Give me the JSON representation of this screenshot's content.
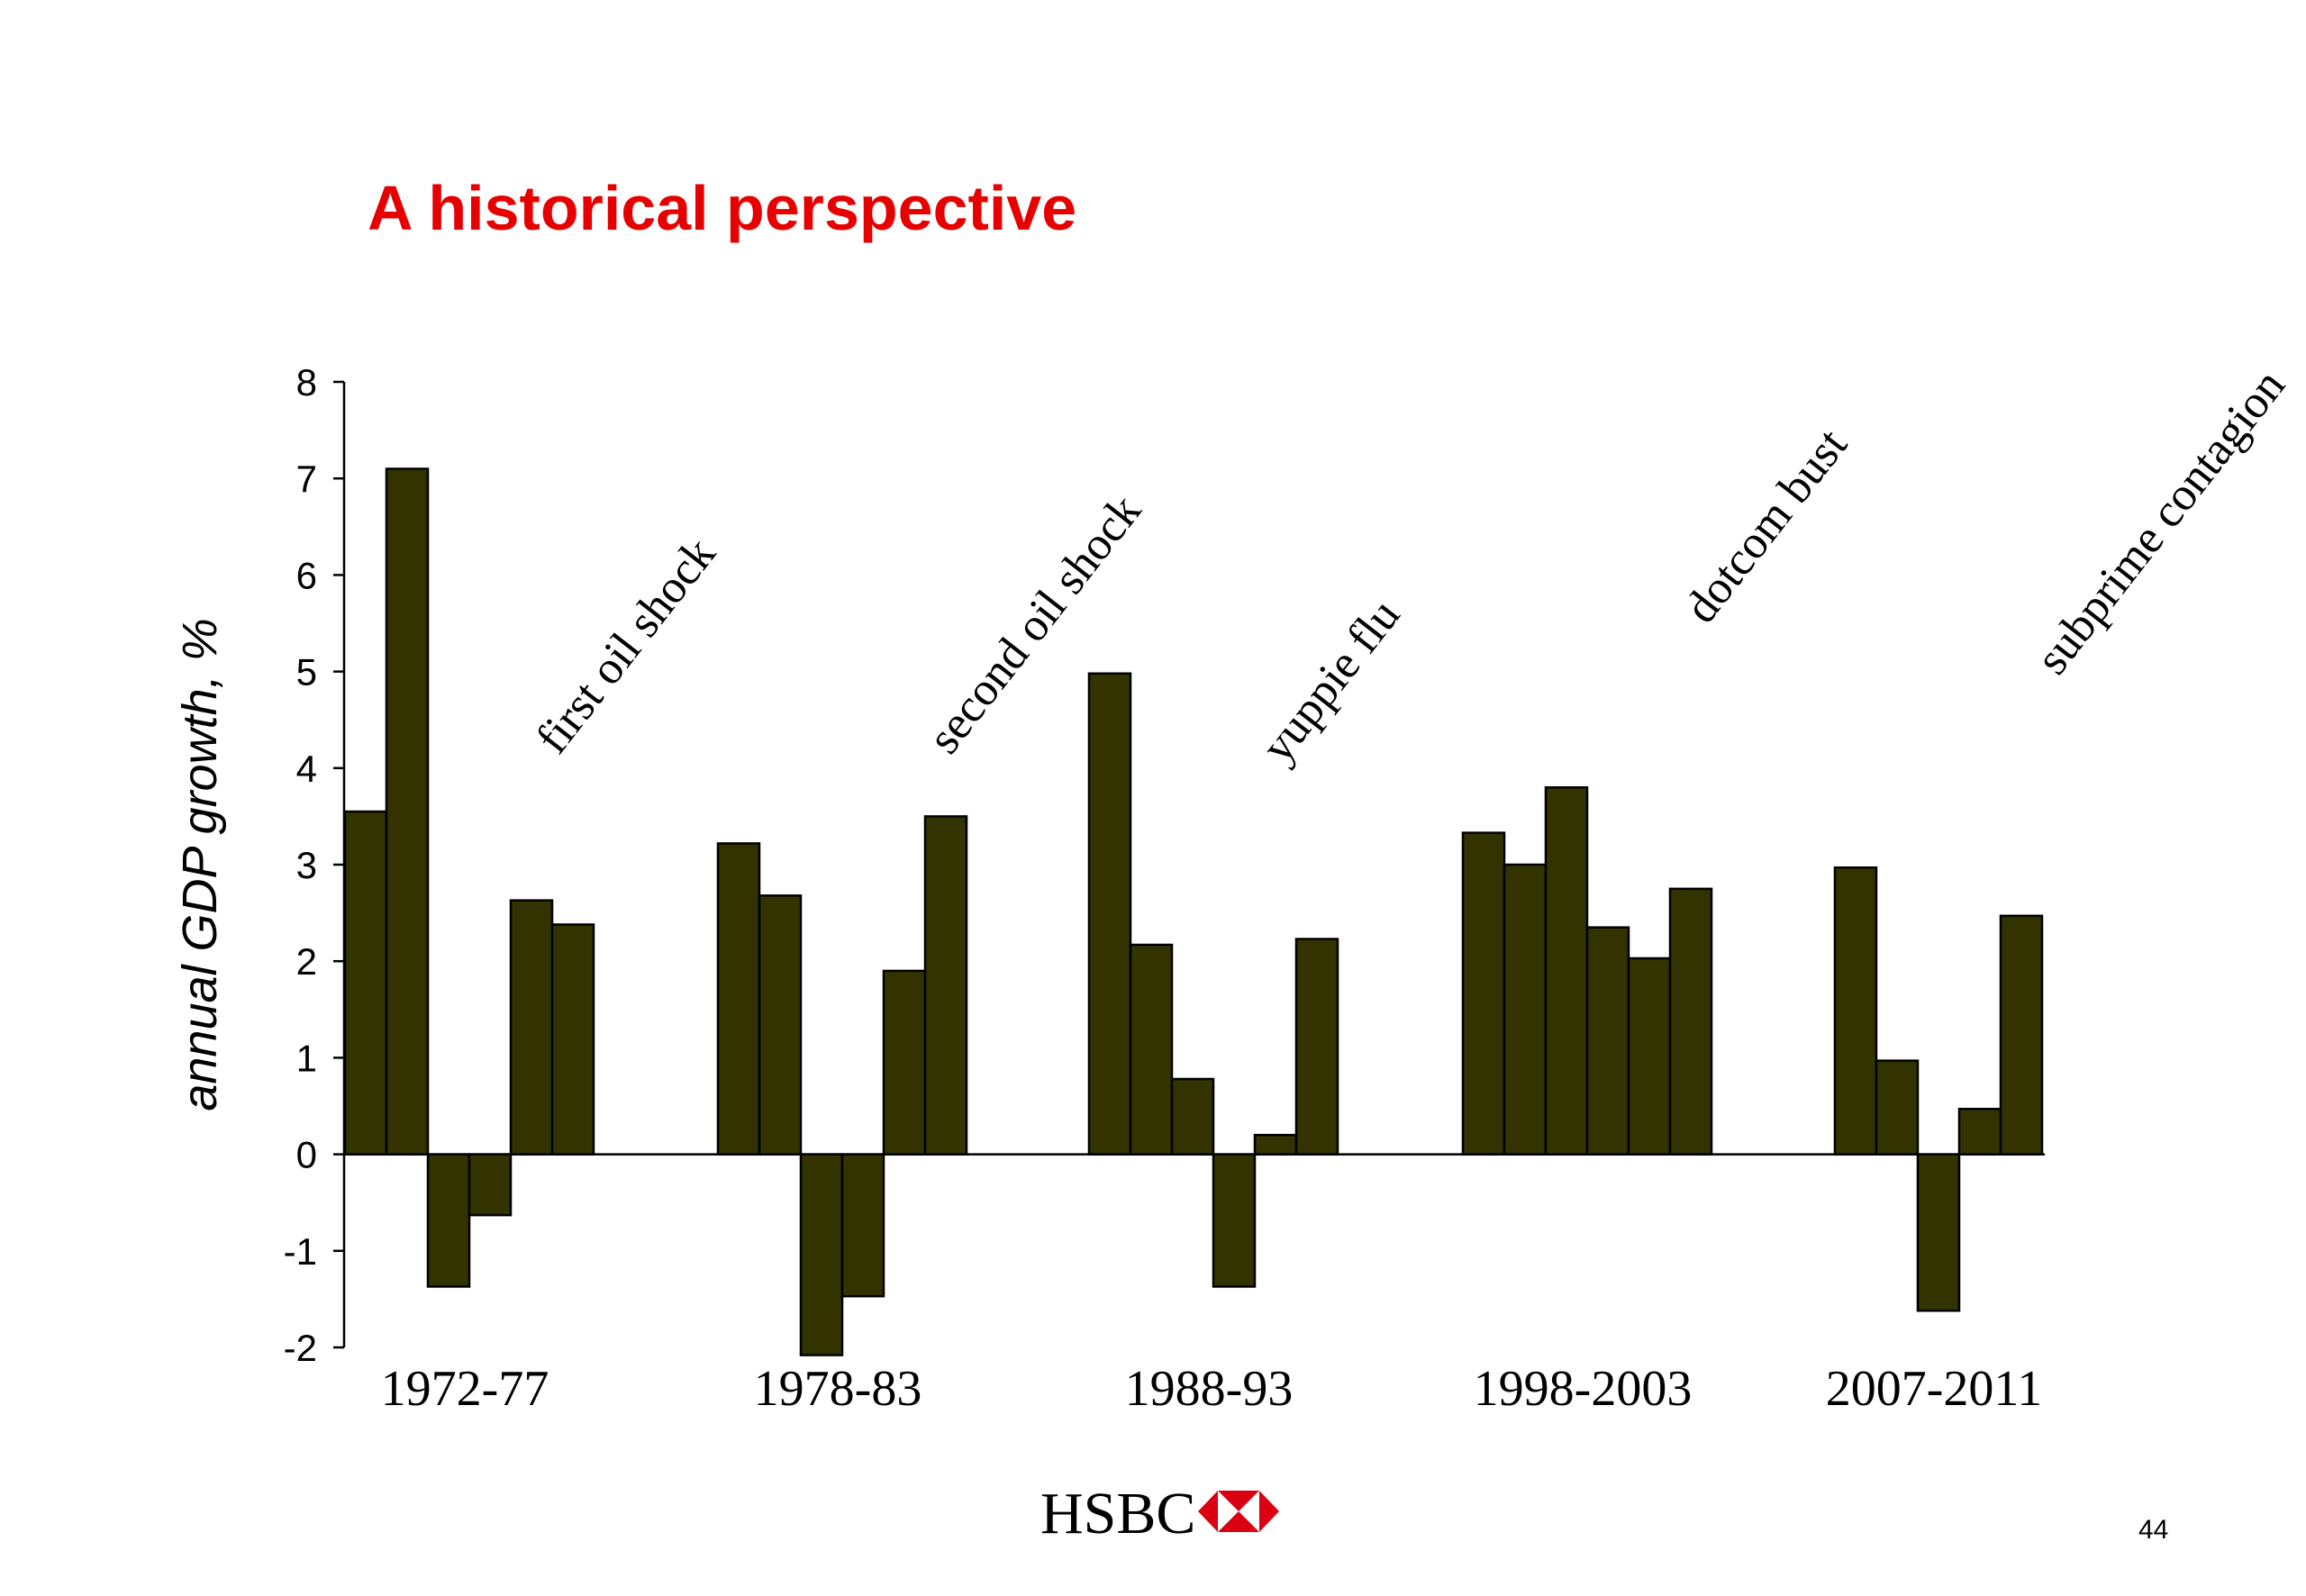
{
  "slide": {
    "title": "A historical perspective",
    "logo_text": "HSBC",
    "logo_icon": "hsbc-hexagon-icon",
    "page_number": "44"
  },
  "colors": {
    "title": "#e60000",
    "bar_fill": "#333300",
    "logo_red": "#db0011"
  },
  "chart_data": {
    "type": "bar",
    "title": "",
    "xlabel": "",
    "ylabel": "annual GDP growth, %",
    "ylim": [
      -2,
      8
    ],
    "yticks": [
      -2,
      -1,
      0,
      1,
      2,
      3,
      4,
      5,
      6,
      7,
      8
    ],
    "grid": false,
    "legend": "none",
    "groups": [
      {
        "label": "1972-77",
        "annotation": "first oil shock",
        "values": [
          3.55,
          7.1,
          -1.37,
          -0.63,
          2.63,
          2.38
        ]
      },
      {
        "label": "1978-83",
        "annotation": "second oil shock",
        "values": [
          3.22,
          2.68,
          -2.08,
          -1.47,
          1.9,
          3.5
        ]
      },
      {
        "label": "1988-93",
        "annotation": "yuppie flu",
        "values": [
          4.98,
          2.17,
          0.78,
          -1.37,
          0.2,
          2.23
        ]
      },
      {
        "label": "1998-2003",
        "annotation": "dotcom bust",
        "values": [
          3.33,
          3.0,
          3.8,
          2.35,
          2.03,
          2.75
        ]
      },
      {
        "label": "2007-2011",
        "annotation": "subprime contagion",
        "values": [
          2.97,
          0.97,
          -1.62,
          0.47,
          2.47
        ]
      }
    ]
  }
}
